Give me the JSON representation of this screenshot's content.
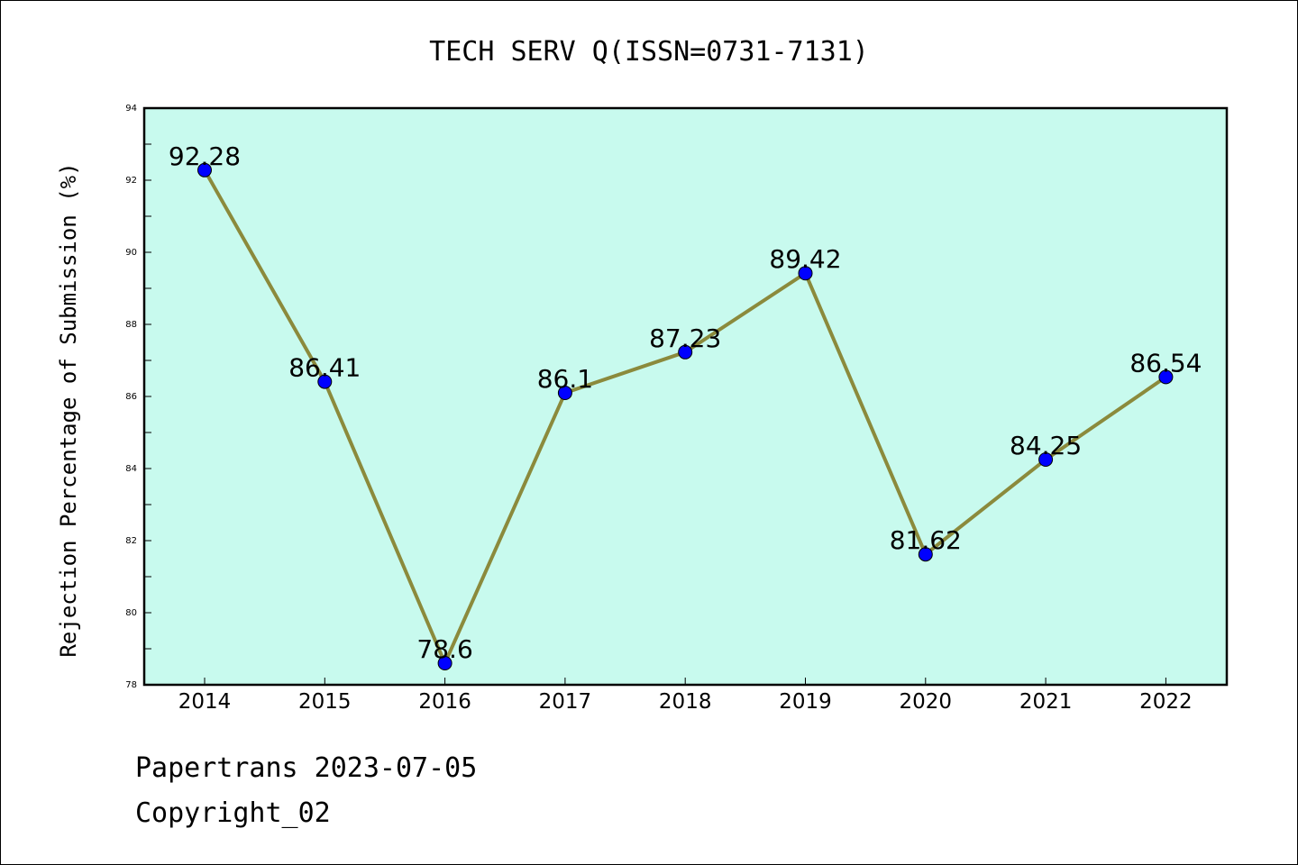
{
  "chart_data": {
    "type": "line",
    "title": "TECH SERV Q(ISSN=0731-7131)",
    "xlabel": "",
    "ylabel": "Rejection Percentage of Submission (%)",
    "categories": [
      "2014",
      "2015",
      "2016",
      "2017",
      "2018",
      "2019",
      "2020",
      "2021",
      "2022"
    ],
    "series": [
      {
        "values": [
          92.28,
          86.41,
          78.6,
          86.1,
          87.23,
          89.42,
          81.62,
          84.25,
          86.54
        ]
      }
    ],
    "data_labels": [
      "92.28",
      "86.41",
      "78.6",
      "86.1",
      "87.23",
      "89.42",
      "81.62",
      "84.25",
      "86.54"
    ],
    "ylim": [
      78,
      94
    ],
    "y_ticks": [
      "78",
      "80",
      "82",
      "84",
      "86",
      "88",
      "90",
      "92",
      "94"
    ],
    "grid": false,
    "colors": {
      "plot_background": "#c8faee",
      "line": "#8b8a3c",
      "marker": "#0000ff"
    }
  },
  "footer": {
    "source": "Papertrans 2023-07-05",
    "copyright": "Copyright_02"
  }
}
